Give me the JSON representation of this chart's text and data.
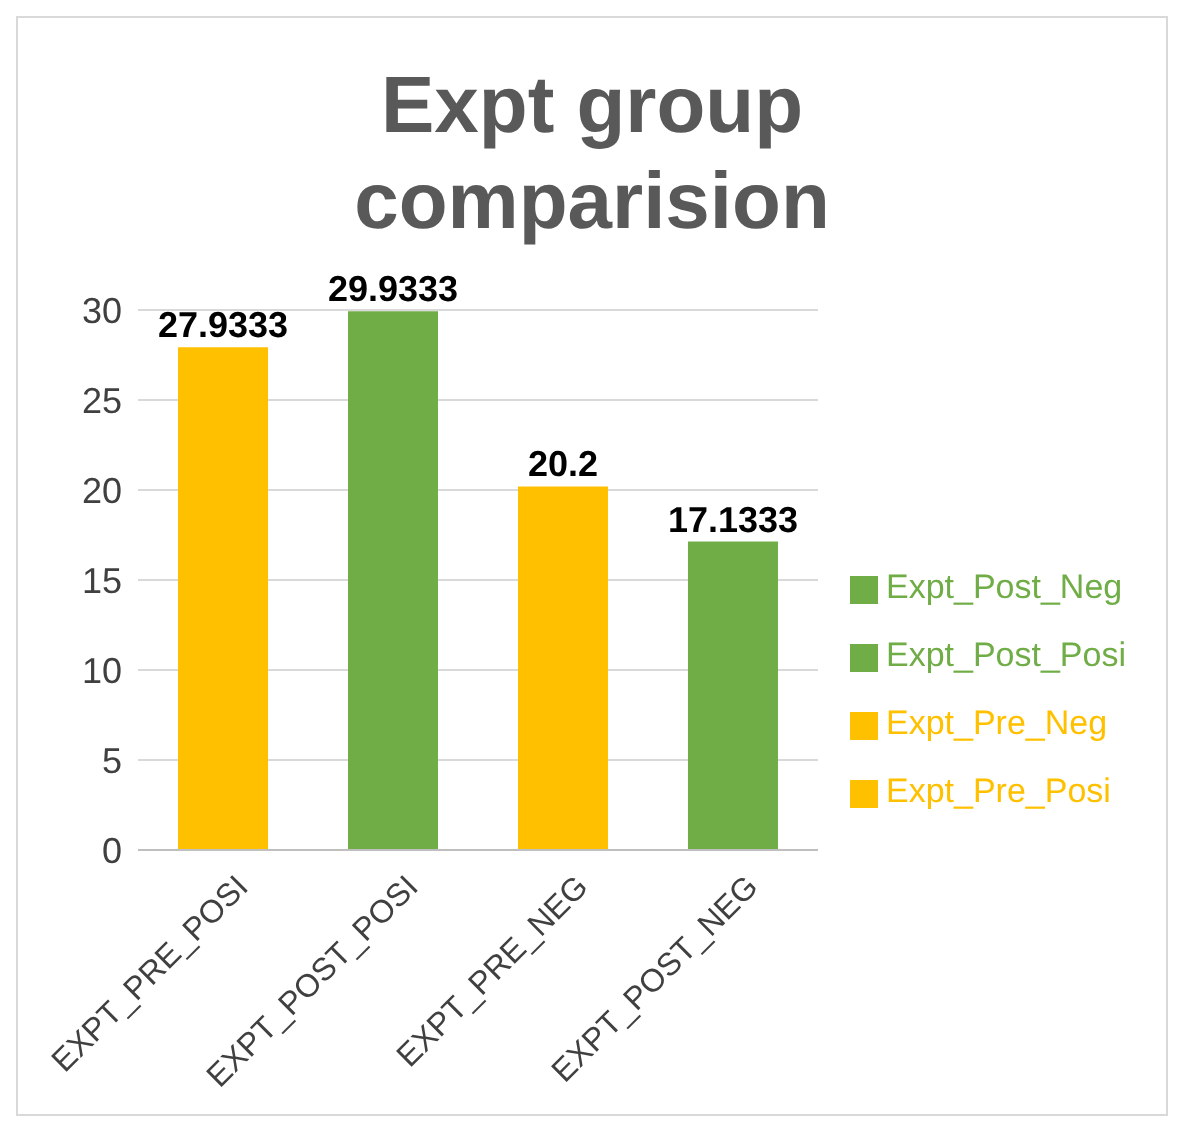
{
  "chart_data": {
    "type": "bar",
    "title": "Expt group comparision",
    "categories": [
      "EXPT_PRE_POSI",
      "EXPT_POST_POSI",
      "EXPT_PRE_NEG",
      "EXPT_POST_NEG"
    ],
    "series": [
      {
        "name": "Expt_Pre_Posi",
        "color": "#ffc000",
        "values": [
          27.9333,
          null,
          null,
          null
        ]
      },
      {
        "name": "Expt_Post_Posi",
        "color": "#70ad47",
        "values": [
          null,
          29.9333,
          null,
          null
        ]
      },
      {
        "name": "Expt_Pre_Neg",
        "color": "#ffc000",
        "values": [
          null,
          null,
          20.2,
          null
        ]
      },
      {
        "name": "Expt_Post_Neg",
        "color": "#70ad47",
        "values": [
          null,
          null,
          null,
          17.1333
        ]
      }
    ],
    "stacked": true,
    "ylim": [
      0,
      30
    ],
    "yticks": [
      0,
      5,
      10,
      15,
      20,
      25,
      30
    ],
    "grid": "y",
    "legend": "right",
    "data_labels": true
  }
}
